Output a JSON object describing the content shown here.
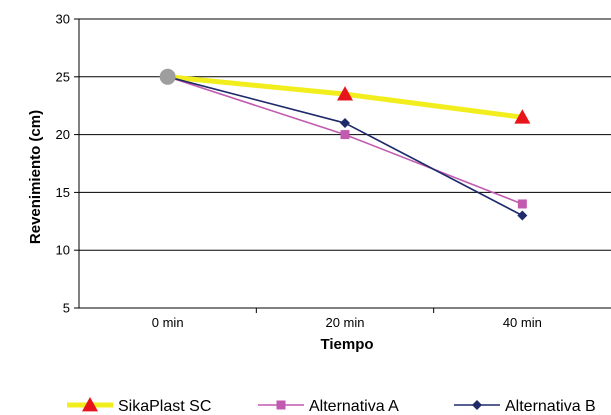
{
  "chart_data": {
    "type": "line",
    "categories": [
      "0 min",
      "20 min",
      "40 min"
    ],
    "xlabel": "Tiempo",
    "ylabel": "Revenimiento (cm)",
    "ylim": [
      5,
      30
    ],
    "yticks": [
      "5",
      "10",
      "15",
      "20",
      "25",
      "30"
    ],
    "grid": "horizontal",
    "legend_position": "bottom",
    "series": [
      {
        "name": "SikaPlast SC",
        "values": [
          25,
          23.5,
          21.5
        ],
        "color": "#F2EE1E",
        "marker": "triangle",
        "marker_color": "#E8141B"
      },
      {
        "name": "Alternativa A",
        "values": [
          25,
          20,
          14
        ],
        "color": "#C25AB0",
        "marker": "square",
        "marker_color": "#C25AB0"
      },
      {
        "name": "Alternativa B",
        "values": [
          25,
          21,
          13
        ],
        "color": "#1F2A6B",
        "marker": "diamond",
        "marker_color": "#1F2A6B"
      }
    ],
    "start_marker_color": "#9E9E9E"
  }
}
